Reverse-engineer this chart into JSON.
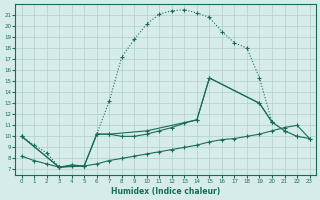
{
  "xlabel": "Humidex (Indice chaleur)",
  "bg_color": "#d6ecea",
  "grid_color": "#b0cfcd",
  "line_color": "#1a6b5a",
  "xlim": [
    -0.5,
    23.5
  ],
  "ylim": [
    6.5,
    22.0
  ],
  "xticks": [
    0,
    1,
    2,
    3,
    4,
    5,
    6,
    7,
    8,
    9,
    10,
    11,
    12,
    13,
    14,
    15,
    16,
    17,
    18,
    19,
    20,
    21,
    22,
    23
  ],
  "yticks": [
    7,
    8,
    9,
    10,
    11,
    12,
    13,
    14,
    15,
    16,
    17,
    18,
    19,
    20,
    21
  ],
  "line1_x": [
    0,
    1,
    2,
    3,
    4,
    5,
    6,
    7,
    8,
    9,
    10,
    11,
    12,
    13,
    14,
    15,
    16,
    17,
    18,
    19,
    20,
    21,
    22
  ],
  "line1_y": [
    10.0,
    9.2,
    8.5,
    7.2,
    7.4,
    7.3,
    10.2,
    13.2,
    17.2,
    18.8,
    20.2,
    21.1,
    21.4,
    21.5,
    21.2,
    20.8,
    19.5,
    18.5,
    18.0,
    15.3,
    11.3,
    10.5,
    10.0
  ],
  "line1_style": "dotted",
  "line2_x": [
    0,
    3,
    4,
    5,
    6,
    7,
    10,
    14,
    15,
    19,
    20,
    21,
    22,
    23
  ],
  "line2_y": [
    10.0,
    7.2,
    7.4,
    7.3,
    10.2,
    10.2,
    10.5,
    11.5,
    15.3,
    13.0,
    11.3,
    10.5,
    10.0,
    9.8
  ],
  "line2_style": "solid",
  "line3_x": [
    0,
    3,
    5,
    6,
    7,
    8,
    9,
    10,
    11,
    12,
    13,
    14,
    15,
    19,
    20
  ],
  "line3_y": [
    10.0,
    7.2,
    7.3,
    10.2,
    10.2,
    10.0,
    10.0,
    10.2,
    10.5,
    10.8,
    11.2,
    11.5,
    15.3,
    13.0,
    11.3
  ],
  "line3_style": "solid",
  "line4_x": [
    0,
    1,
    2,
    3,
    4,
    5,
    6,
    7,
    8,
    9,
    10,
    11,
    12,
    13,
    14,
    15,
    16,
    17,
    18,
    19,
    20,
    21,
    22,
    23
  ],
  "line4_y": [
    8.2,
    7.8,
    7.5,
    7.2,
    7.3,
    7.3,
    7.5,
    7.8,
    8.0,
    8.2,
    8.4,
    8.6,
    8.8,
    9.0,
    9.2,
    9.5,
    9.7,
    9.8,
    10.0,
    10.2,
    10.5,
    10.8,
    11.0,
    9.8
  ],
  "line4_style": "solid"
}
